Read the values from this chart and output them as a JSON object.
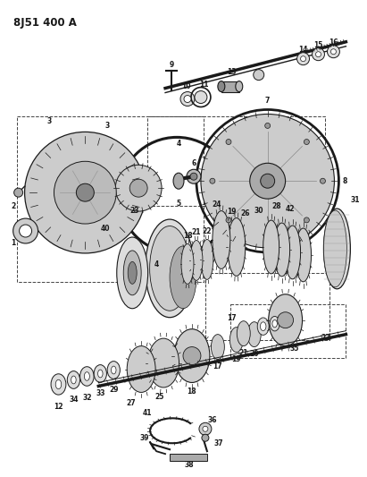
{
  "title": "8J51 400 A",
  "bg_color": "#ffffff",
  "line_color": "#1a1a1a",
  "fig_width": 4.11,
  "fig_height": 5.33,
  "dpi": 100
}
